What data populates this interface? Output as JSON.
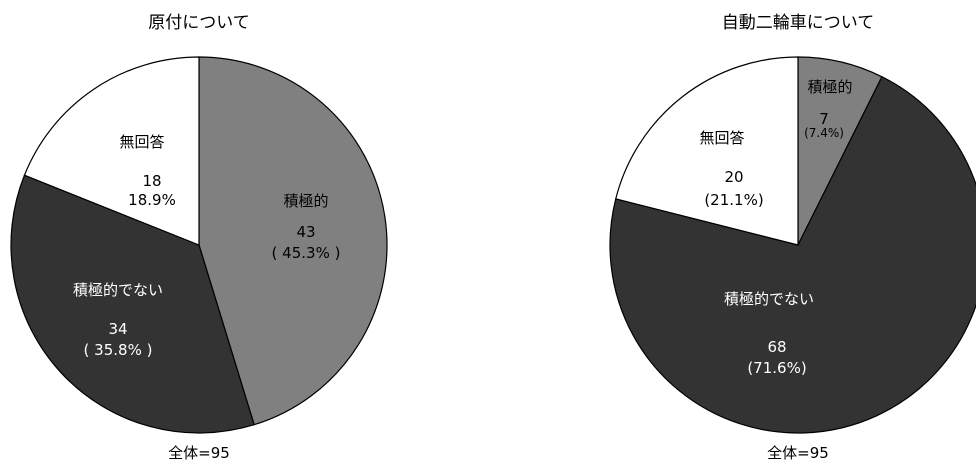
{
  "chart_data": [
    {
      "type": "pie",
      "title": "原付について",
      "total_label": "全体=95",
      "slices": [
        {
          "name": "積極的",
          "value": 43,
          "value_label": "43",
          "percent_label": "( 45.3% )",
          "color": "#808080"
        },
        {
          "name": "積極的でない",
          "value": 34,
          "value_label": "34",
          "percent_label": "( 35.8% )",
          "color": "#333333"
        },
        {
          "name": "無回答",
          "value": 18,
          "value_label": "18",
          "percent_label": "18.9%",
          "color": "#ffffff"
        }
      ]
    },
    {
      "type": "pie",
      "title": "自動二輪車について",
      "total_label": "全体=95",
      "slices": [
        {
          "name": "積極的",
          "value": 7,
          "value_label": "7",
          "percent_label": "(7.4%)",
          "color": "#808080"
        },
        {
          "name": "積極的でない",
          "value": 68,
          "value_label": "68",
          "percent_label": "(71.6%)",
          "color": "#333333"
        },
        {
          "name": "無回答",
          "value": 20,
          "value_label": "20",
          "percent_label": "(21.1%)",
          "color": "#ffffff"
        }
      ]
    }
  ]
}
